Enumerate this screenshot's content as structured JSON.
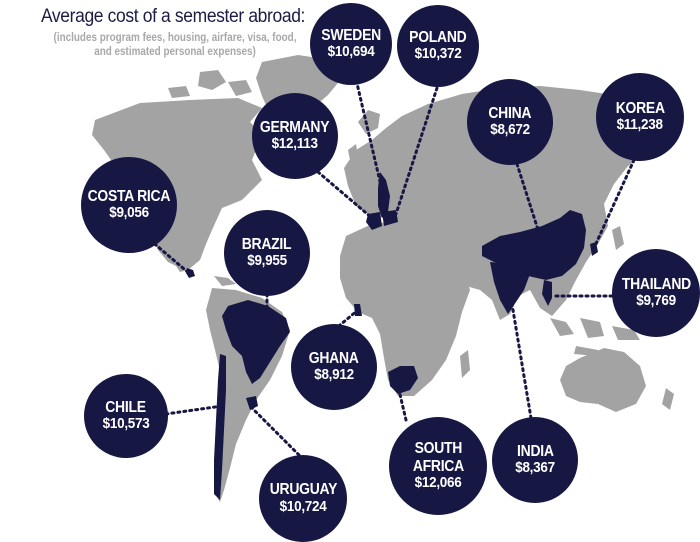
{
  "header": {
    "title": "Average cost of a semester abroad:",
    "subtitle_line1": "(includes program fees, housing, airfare, visa, food,",
    "subtitle_line2": "and estimated personal expenses)"
  },
  "colors": {
    "bubble": "#171744",
    "land": "#a3a3a3",
    "highlight": "#171744",
    "title": "#1c1c45",
    "subtitle": "#a8a8a8"
  },
  "countries": [
    {
      "id": "sweden",
      "name_lines": [
        "SWEDEN"
      ],
      "cost": "$10,694"
    },
    {
      "id": "poland",
      "name_lines": [
        "POLAND"
      ],
      "cost": "$10,372"
    },
    {
      "id": "germany",
      "name_lines": [
        "GERMANY"
      ],
      "cost": "$12,113"
    },
    {
      "id": "china",
      "name_lines": [
        "CHINA"
      ],
      "cost": "$8,672"
    },
    {
      "id": "korea",
      "name_lines": [
        "KOREA"
      ],
      "cost": "$11,238"
    },
    {
      "id": "costa-rica",
      "name_lines": [
        "COSTA RICA"
      ],
      "cost": "$9,056"
    },
    {
      "id": "brazil",
      "name_lines": [
        "BRAZIL"
      ],
      "cost": "$9,955"
    },
    {
      "id": "thailand",
      "name_lines": [
        "THAILAND"
      ],
      "cost": "$9,769"
    },
    {
      "id": "ghana",
      "name_lines": [
        "GHANA"
      ],
      "cost": "$8,912"
    },
    {
      "id": "chile",
      "name_lines": [
        "CHILE"
      ],
      "cost": "$10,573"
    },
    {
      "id": "south-africa",
      "name_lines": [
        "SOUTH",
        "AFRICA"
      ],
      "cost": "$12,066"
    },
    {
      "id": "india",
      "name_lines": [
        "INDIA"
      ],
      "cost": "$8,367"
    },
    {
      "id": "uruguay",
      "name_lines": [
        "URUGUAY"
      ],
      "cost": "$10,724"
    }
  ]
}
